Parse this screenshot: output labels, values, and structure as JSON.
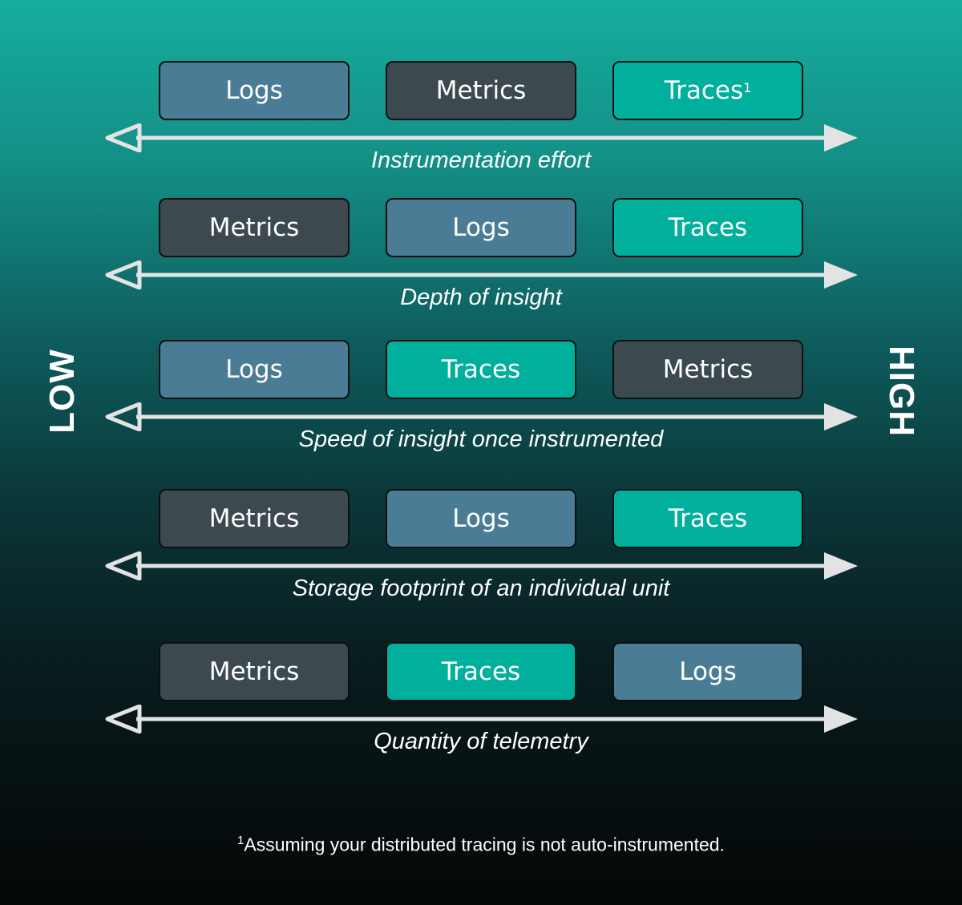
{
  "sides": {
    "low": "LOW",
    "high": "HIGH"
  },
  "rows": [
    {
      "label": "Instrumentation effort",
      "boxes": [
        {
          "text": "Logs",
          "kind": "logs",
          "sup": ""
        },
        {
          "text": "Metrics",
          "kind": "metrics",
          "sup": ""
        },
        {
          "text": "Traces",
          "kind": "traces",
          "sup": "1"
        }
      ]
    },
    {
      "label": "Depth of insight",
      "boxes": [
        {
          "text": "Metrics",
          "kind": "metrics",
          "sup": ""
        },
        {
          "text": "Logs",
          "kind": "logs",
          "sup": ""
        },
        {
          "text": "Traces",
          "kind": "traces",
          "sup": ""
        }
      ]
    },
    {
      "label": "Speed of insight once instrumented",
      "boxes": [
        {
          "text": "Logs",
          "kind": "logs",
          "sup": ""
        },
        {
          "text": "Traces",
          "kind": "traces",
          "sup": ""
        },
        {
          "text": "Metrics",
          "kind": "metrics",
          "sup": ""
        }
      ]
    },
    {
      "label": "Storage footprint of an individual unit",
      "boxes": [
        {
          "text": "Metrics",
          "kind": "metrics",
          "sup": ""
        },
        {
          "text": "Logs",
          "kind": "logs",
          "sup": ""
        },
        {
          "text": "Traces",
          "kind": "traces",
          "sup": ""
        }
      ]
    },
    {
      "label": "Quantity of telemetry",
      "boxes": [
        {
          "text": "Metrics",
          "kind": "metrics",
          "sup": ""
        },
        {
          "text": "Traces",
          "kind": "traces",
          "sup": ""
        },
        {
          "text": "Logs",
          "kind": "logs",
          "sup": ""
        }
      ]
    }
  ],
  "footnote": {
    "marker": "1",
    "text": "Assuming your distributed tracing is not auto-instrumented."
  },
  "colors": {
    "logs": "#4a7d95",
    "metrics": "#3c494f",
    "traces": "#00b09c",
    "arrow": "#e3e3e3"
  }
}
